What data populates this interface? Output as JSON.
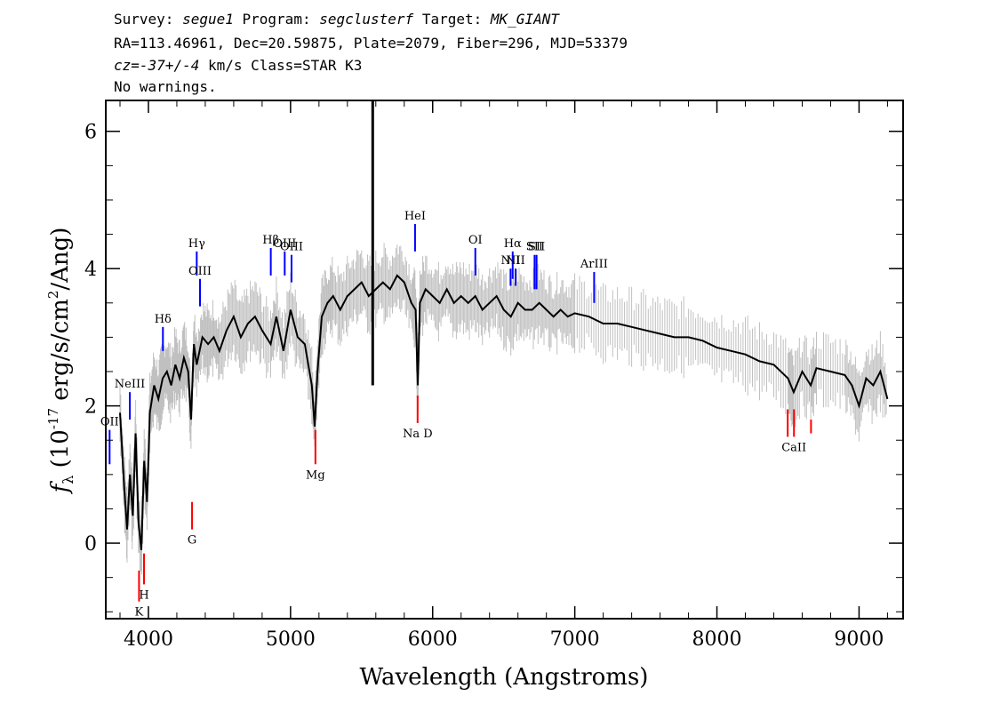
{
  "header": {
    "survey_label": "Survey:",
    "survey": "segue1",
    "program_label": "Program:",
    "program": "segclusterf",
    "target_label": "Target:",
    "target": "MK_GIANT",
    "line2": "RA=113.46961, Dec=20.59875, Plate=2079, Fiber=296, MJD=53379",
    "cz_label": "cz=",
    "cz_value": "-37+/-4",
    "cz_rest": " km/s Class=STAR K3",
    "line4": "No warnings."
  },
  "chart_data": {
    "type": "line",
    "xlabel": "Wavelength (Angstroms)",
    "ylabel_main": "f",
    "ylabel_sub": "λ",
    "ylabel_units": " (10",
    "ylabel_exp": "-17",
    "ylabel_units2": " erg/s/cm",
    "ylabel_exp2": "2",
    "ylabel_units3": "/Ang)",
    "xlim": [
      3700,
      9310
    ],
    "ylim": [
      -1.1,
      6.45
    ],
    "x_ticks": [
      4000,
      5000,
      6000,
      7000,
      8000,
      9000
    ],
    "x_tick_labels": [
      "4000",
      "5000",
      "6000",
      "7000",
      "8000",
      "9000"
    ],
    "y_ticks": [
      0,
      2,
      4,
      6
    ],
    "y_tick_labels": [
      "0",
      "2",
      "4",
      "6"
    ],
    "series": [
      {
        "role": "flux",
        "color": "#000000",
        "x": [
          3800,
          3830,
          3850,
          3870,
          3890,
          3910,
          3930,
          3950,
          3970,
          3990,
          4010,
          4040,
          4070,
          4100,
          4130,
          4160,
          4190,
          4220,
          4250,
          4280,
          4300,
          4320,
          4340,
          4380,
          4420,
          4460,
          4500,
          4550,
          4600,
          4650,
          4700,
          4750,
          4800,
          4860,
          4900,
          4950,
          5000,
          5050,
          5100,
          5150,
          5170,
          5190,
          5220,
          5260,
          5300,
          5350,
          5400,
          5450,
          5500,
          5550,
          5600,
          5650,
          5700,
          5750,
          5800,
          5850,
          5880,
          5895,
          5910,
          5950,
          6000,
          6050,
          6100,
          6150,
          6200,
          6250,
          6300,
          6350,
          6400,
          6450,
          6500,
          6550,
          6600,
          6650,
          6700,
          6750,
          6800,
          6850,
          6900,
          6950,
          7000,
          7100,
          7200,
          7300,
          7400,
          7500,
          7600,
          7700,
          7800,
          7900,
          8000,
          8100,
          8200,
          8300,
          8400,
          8500,
          8540,
          8600,
          8660,
          8700,
          8800,
          8900,
          8950,
          9000,
          9050,
          9100,
          9150,
          9200
        ],
        "values": [
          1.9,
          0.8,
          0.2,
          1.0,
          0.4,
          1.6,
          0.3,
          -0.1,
          1.2,
          0.6,
          1.9,
          2.3,
          2.1,
          2.4,
          2.5,
          2.3,
          2.6,
          2.4,
          2.7,
          2.5,
          1.8,
          2.9,
          2.6,
          3.0,
          2.9,
          3.0,
          2.8,
          3.1,
          3.3,
          3.0,
          3.2,
          3.3,
          3.1,
          2.9,
          3.3,
          2.8,
          3.4,
          3.0,
          2.9,
          2.3,
          1.7,
          2.5,
          3.3,
          3.5,
          3.6,
          3.4,
          3.6,
          3.7,
          3.8,
          3.6,
          3.7,
          3.8,
          3.7,
          3.9,
          3.8,
          3.5,
          3.4,
          2.3,
          3.5,
          3.7,
          3.6,
          3.5,
          3.7,
          3.5,
          3.6,
          3.5,
          3.6,
          3.4,
          3.5,
          3.6,
          3.4,
          3.3,
          3.5,
          3.4,
          3.4,
          3.5,
          3.4,
          3.3,
          3.4,
          3.3,
          3.35,
          3.3,
          3.2,
          3.2,
          3.15,
          3.1,
          3.05,
          3.0,
          3.0,
          2.95,
          2.85,
          2.8,
          2.75,
          2.65,
          2.6,
          2.4,
          2.2,
          2.5,
          2.3,
          2.55,
          2.5,
          2.45,
          2.3,
          2.0,
          2.4,
          2.3,
          2.5,
          2.1
        ]
      },
      {
        "role": "sky-line",
        "color": "#000000",
        "x": [
          5578,
          5578
        ],
        "values": [
          2.3,
          6.45
        ]
      }
    ],
    "emission_lines": [
      {
        "label": "OII",
        "wavelength": 3727,
        "y_bottom": 1.15,
        "y_top": 1.65,
        "label_above": true
      },
      {
        "label": "NeIII",
        "wavelength": 3869,
        "y_bottom": 1.8,
        "y_top": 2.2,
        "label_above": true
      },
      {
        "label": "Hδ",
        "wavelength": 4102,
        "y_bottom": 2.8,
        "y_top": 3.15,
        "label_above": true
      },
      {
        "label": "Hγ",
        "wavelength": 4340,
        "y_bottom": 3.9,
        "y_top": 4.25,
        "label_above": true
      },
      {
        "label": "OIII",
        "wavelength": 4363,
        "y_bottom": 3.45,
        "y_top": 3.85,
        "label_above": true
      },
      {
        "label": "Hβ",
        "wavelength": 4861,
        "y_bottom": 3.9,
        "y_top": 4.3,
        "label_above": true
      },
      {
        "label": "OIII",
        "wavelength": 4959,
        "y_bottom": 3.9,
        "y_top": 4.25,
        "label_above": true
      },
      {
        "label": "OIII",
        "wavelength": 5007,
        "y_bottom": 3.8,
        "y_top": 4.2,
        "label_above": false
      },
      {
        "label": "HeI",
        "wavelength": 5876,
        "y_bottom": 4.25,
        "y_top": 4.65,
        "label_above": true
      },
      {
        "label": "OI",
        "wavelength": 6300,
        "y_bottom": 3.9,
        "y_top": 4.3,
        "label_above": true
      },
      {
        "label": "NII",
        "wavelength": 6548,
        "y_bottom": 3.75,
        "y_top": 4.0,
        "label_above": false
      },
      {
        "label": "Hα",
        "wavelength": 6563,
        "y_bottom": 3.85,
        "y_top": 4.25,
        "label_above": true
      },
      {
        "label": "NII",
        "wavelength": 6583,
        "y_bottom": 3.75,
        "y_top": 4.0,
        "label_above": false
      },
      {
        "label": "SII",
        "wavelength": 6717,
        "y_bottom": 3.7,
        "y_top": 4.2,
        "label_above": true
      },
      {
        "label": "SII",
        "wavelength": 6731,
        "y_bottom": 3.7,
        "y_top": 4.2,
        "label_above": false
      },
      {
        "label": "ArIII",
        "wavelength": 7136,
        "y_bottom": 3.5,
        "y_top": 3.95,
        "label_above": true
      }
    ],
    "absorption_lines": [
      {
        "label": "K",
        "wavelength": 3934,
        "y_top": -0.4,
        "y_bottom": -0.85
      },
      {
        "label": "H",
        "wavelength": 3969,
        "y_top": -0.15,
        "y_bottom": -0.6
      },
      {
        "label": "G",
        "wavelength": 4307,
        "y_top": 0.6,
        "y_bottom": 0.2
      },
      {
        "label": "Mg",
        "wavelength": 5175,
        "y_top": 1.65,
        "y_bottom": 1.15
      },
      {
        "label": "Na D",
        "wavelength": 5894,
        "y_top": 2.15,
        "y_bottom": 1.75
      },
      {
        "label": "",
        "wavelength": 8498,
        "y_top": 1.95,
        "y_bottom": 1.55
      },
      {
        "label": "CaII",
        "wavelength": 8542,
        "y_top": 1.95,
        "y_bottom": 1.55
      },
      {
        "label": "",
        "wavelength": 8662,
        "y_top": 1.8,
        "y_bottom": 1.6
      }
    ],
    "colors": {
      "flux": "#000000",
      "error": "#c0c0c0",
      "emission": "#0000ff",
      "absorption": "#ff0000"
    },
    "grid": false
  }
}
